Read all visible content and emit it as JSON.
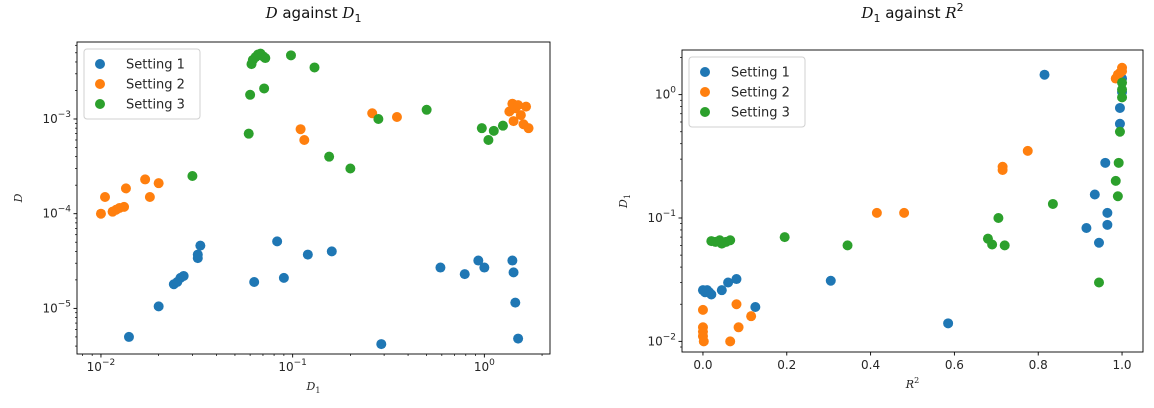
{
  "colors": {
    "series": [
      "#1f77b4",
      "#ff7f0e",
      "#2ca02c"
    ]
  },
  "chart_data": [
    {
      "type": "scatter",
      "title": "D against D1",
      "title_parts": [
        "D",
        " against ",
        "D",
        "1"
      ],
      "xlabel": "D1",
      "ylabel": "D",
      "xscale": "log",
      "yscale": "log",
      "xlim": [
        0.0075,
        2.2
      ],
      "ylim": [
        3.3e-06,
        0.0065
      ],
      "xticks": [
        {
          "value": 0.01,
          "base": "10",
          "exp": "−2"
        },
        {
          "value": 0.1,
          "base": "10",
          "exp": "−1"
        },
        {
          "value": 1,
          "base": "10",
          "exp": "0"
        }
      ],
      "yticks": [
        {
          "value": 1e-05,
          "base": "10",
          "exp": "−5"
        },
        {
          "value": 0.0001,
          "base": "10",
          "exp": "−4"
        },
        {
          "value": 0.001,
          "base": "10",
          "exp": "−3"
        }
      ],
      "legend_position": "top-left",
      "grid": false,
      "series": [
        {
          "name": "Setting 1",
          "points": [
            [
              0.014,
              5e-06
            ],
            [
              0.02,
              1.05e-05
            ],
            [
              0.024,
              1.8e-05
            ],
            [
              0.025,
              1.9e-05
            ],
            [
              0.026,
              2.1e-05
            ],
            [
              0.027,
              2.2e-05
            ],
            [
              0.032,
              3.4e-05
            ],
            [
              0.032,
              3.7e-05
            ],
            [
              0.033,
              4.6e-05
            ],
            [
              0.063,
              1.9e-05
            ],
            [
              0.083,
              5.1e-05
            ],
            [
              0.09,
              2.1e-05
            ],
            [
              0.12,
              3.7e-05
            ],
            [
              0.16,
              4e-05
            ],
            [
              0.29,
              4.2e-06
            ],
            [
              0.59,
              2.7e-05
            ],
            [
              0.79,
              2.3e-05
            ],
            [
              0.93,
              3.2e-05
            ],
            [
              1.0,
              2.7e-05
            ],
            [
              1.4,
              3.2e-05
            ],
            [
              1.42,
              2.4e-05
            ],
            [
              1.45,
              1.15e-05
            ],
            [
              1.5,
              4.8e-06
            ]
          ]
        },
        {
          "name": "Setting 2",
          "points": [
            [
              0.01,
              0.0001
            ],
            [
              0.0105,
              0.00015
            ],
            [
              0.0115,
              0.000105
            ],
            [
              0.012,
              0.00011
            ],
            [
              0.0125,
              0.000115
            ],
            [
              0.0132,
              0.000118
            ],
            [
              0.0135,
              0.000185
            ],
            [
              0.017,
              0.00023
            ],
            [
              0.018,
              0.00015
            ],
            [
              0.02,
              0.00021
            ],
            [
              0.11,
              0.00078
            ],
            [
              0.115,
              0.0006
            ],
            [
              0.26,
              0.00115
            ],
            [
              0.35,
              0.00105
            ],
            [
              1.35,
              0.0012
            ],
            [
              1.4,
              0.00145
            ],
            [
              1.42,
              0.00095
            ],
            [
              1.45,
              0.0013
            ],
            [
              1.5,
              0.0014
            ],
            [
              1.55,
              0.0011
            ],
            [
              1.6,
              0.00088
            ],
            [
              1.65,
              0.00135
            ],
            [
              1.7,
              0.0008
            ]
          ]
        },
        {
          "name": "Setting 3",
          "points": [
            [
              0.03,
              0.00025
            ],
            [
              0.059,
              0.0007
            ],
            [
              0.06,
              0.0018
            ],
            [
              0.061,
              0.0038
            ],
            [
              0.062,
              0.0042
            ],
            [
              0.064,
              0.0045
            ],
            [
              0.066,
              0.0048
            ],
            [
              0.068,
              0.0049
            ],
            [
              0.07,
              0.0046
            ],
            [
              0.071,
              0.0021
            ],
            [
              0.072,
              0.0044
            ],
            [
              0.098,
              0.0047
            ],
            [
              0.13,
              0.0035
            ],
            [
              0.155,
              0.0004
            ],
            [
              0.2,
              0.0003
            ],
            [
              0.28,
              0.001
            ],
            [
              0.5,
              0.00125
            ],
            [
              0.97,
              0.0008
            ],
            [
              1.05,
              0.0006
            ],
            [
              1.12,
              0.00075
            ],
            [
              1.25,
              0.00085
            ]
          ]
        }
      ]
    },
    {
      "type": "scatter",
      "title": "D1 against R2",
      "title_parts": [
        "D",
        "1",
        " against ",
        "R",
        "2"
      ],
      "xlabel": "R2",
      "ylabel": "D1",
      "xscale": "linear",
      "yscale": "log",
      "xlim": [
        -0.05,
        1.05
      ],
      "ylim": [
        0.0082,
        2.3
      ],
      "xticks": [
        {
          "value": 0,
          "label": "0.0"
        },
        {
          "value": 0.2,
          "label": "0.2"
        },
        {
          "value": 0.4,
          "label": "0.4"
        },
        {
          "value": 0.6,
          "label": "0.6"
        },
        {
          "value": 0.8,
          "label": "0.8"
        },
        {
          "value": 1.0,
          "label": "1.0"
        }
      ],
      "yticks": [
        {
          "value": 0.01,
          "base": "10",
          "exp": "−2"
        },
        {
          "value": 0.1,
          "base": "10",
          "exp": "−1"
        },
        {
          "value": 1,
          "base": "10",
          "exp": "0"
        }
      ],
      "legend_position": "top-left",
      "grid": false,
      "series": [
        {
          "name": "Setting 1",
          "points": [
            [
              0.0,
              0.026
            ],
            [
              0.005,
              0.025
            ],
            [
              0.01,
              0.026
            ],
            [
              0.015,
              0.025
            ],
            [
              0.02,
              0.024
            ],
            [
              0.045,
              0.026
            ],
            [
              0.06,
              0.03
            ],
            [
              0.08,
              0.032
            ],
            [
              0.125,
              0.019
            ],
            [
              0.305,
              0.031
            ],
            [
              0.585,
              0.014
            ],
            [
              0.815,
              1.45
            ],
            [
              0.915,
              0.083
            ],
            [
              0.935,
              0.155
            ],
            [
              0.945,
              0.063
            ],
            [
              0.96,
              0.28
            ],
            [
              0.965,
              0.11
            ],
            [
              0.965,
              0.088
            ],
            [
              0.995,
              0.58
            ],
            [
              0.995,
              0.78
            ],
            [
              1.0,
              1.05
            ],
            [
              1.0,
              1.35
            ]
          ]
        },
        {
          "name": "Setting 2",
          "points": [
            [
              0.0,
              0.018
            ],
            [
              0.0,
              0.013
            ],
            [
              0.0,
              0.012
            ],
            [
              0.0,
              0.011
            ],
            [
              0.002,
              0.01
            ],
            [
              0.065,
              0.01
            ],
            [
              0.08,
              0.02
            ],
            [
              0.085,
              0.013
            ],
            [
              0.115,
              0.016
            ],
            [
              0.415,
              0.11
            ],
            [
              0.48,
              0.11
            ],
            [
              0.715,
              0.245
            ],
            [
              0.715,
              0.26
            ],
            [
              0.775,
              0.35
            ],
            [
              0.985,
              1.35
            ],
            [
              0.99,
              1.45
            ],
            [
              0.995,
              1.5
            ],
            [
              1.0,
              1.65
            ],
            [
              1.0,
              1.55
            ]
          ]
        },
        {
          "name": "Setting 3",
          "points": [
            [
              0.02,
              0.065
            ],
            [
              0.03,
              0.064
            ],
            [
              0.04,
              0.066
            ],
            [
              0.045,
              0.062
            ],
            [
              0.055,
              0.064
            ],
            [
              0.065,
              0.066
            ],
            [
              0.195,
              0.07
            ],
            [
              0.345,
              0.06
            ],
            [
              0.68,
              0.068
            ],
            [
              0.69,
              0.061
            ],
            [
              0.705,
              0.1
            ],
            [
              0.72,
              0.06
            ],
            [
              0.835,
              0.13
            ],
            [
              0.945,
              0.03
            ],
            [
              0.985,
              0.2
            ],
            [
              0.99,
              0.15
            ],
            [
              0.992,
              0.28
            ],
            [
              0.995,
              0.5
            ],
            [
              1.0,
              0.95
            ],
            [
              1.0,
              1.1
            ],
            [
              1.0,
              1.25
            ]
          ]
        }
      ]
    }
  ]
}
